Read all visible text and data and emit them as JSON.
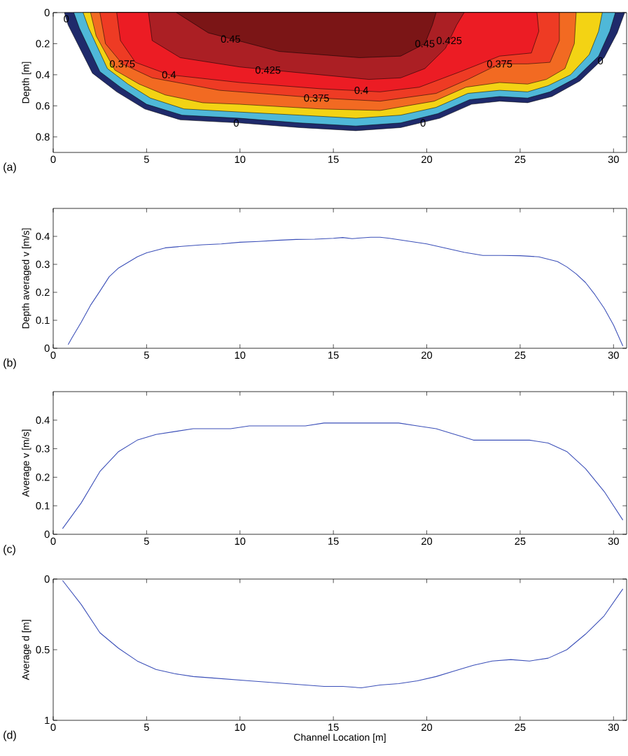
{
  "chart_data": [
    {
      "type": "area",
      "ylabel": "Depth [m]",
      "xlim": [
        0,
        30.7
      ],
      "ylim": [
        0.9,
        0
      ],
      "xticks": [
        0,
        5,
        10,
        15,
        20,
        25,
        30
      ],
      "yticks": [
        0,
        0.2,
        0.4,
        0.6,
        0.8
      ],
      "series": [
        {
          "color": "#1f2a6b",
          "x": [
            0.6,
            0.8,
            2.1,
            3.4,
            4.9,
            6.8,
            10,
            13.2,
            16.2,
            18.6,
            20.7,
            22.4,
            23.9,
            25.4,
            26.7,
            28.2,
            29.5,
            30.2,
            30.6
          ],
          "values": [
            0,
            0.08,
            0.39,
            0.51,
            0.62,
            0.69,
            0.71,
            0.74,
            0.76,
            0.74,
            0.68,
            0.59,
            0.57,
            0.58,
            0.54,
            0.44,
            0.29,
            0.13,
            0
          ]
        },
        {
          "color": "#4fb8d8",
          "x": [
            1.1,
            1.4,
            2.5,
            3.6,
            5,
            6.9,
            10,
            13.2,
            16.2,
            18.6,
            20.6,
            22.3,
            23.9,
            25.4,
            26.6,
            28,
            29.2,
            29.8,
            30.1
          ],
          "values": [
            0,
            0.1,
            0.38,
            0.48,
            0.59,
            0.66,
            0.68,
            0.71,
            0.73,
            0.71,
            0.65,
            0.56,
            0.54,
            0.55,
            0.51,
            0.42,
            0.28,
            0.12,
            0
          ]
        },
        {
          "color": "#f3d314",
          "x": [
            1.6,
            1.9,
            2.9,
            4,
            5.2,
            7,
            10,
            13.2,
            16.2,
            18.6,
            20.5,
            22.2,
            23.9,
            25.4,
            26.5,
            27.7,
            28.7,
            29.2,
            29.4
          ],
          "values": [
            0,
            0.1,
            0.36,
            0.46,
            0.55,
            0.62,
            0.64,
            0.66,
            0.68,
            0.66,
            0.61,
            0.52,
            0.5,
            0.51,
            0.47,
            0.4,
            0.27,
            0.12,
            0
          ]
        },
        {
          "color": "#f26a22",
          "x": [
            2,
            2.3,
            3.3,
            4.6,
            6,
            8,
            10,
            14.3,
            17.5,
            20.4,
            22.1,
            23.9,
            25.4,
            26.4,
            27.4,
            27.9,
            28
          ],
          "values": [
            0,
            0.15,
            0.37,
            0.46,
            0.53,
            0.58,
            0.59,
            0.62,
            0.63,
            0.57,
            0.48,
            0.45,
            0.46,
            0.43,
            0.36,
            0.2,
            0
          ]
        },
        {
          "color": "#ee3b24",
          "x": [
            2.5,
            2.8,
            3.7,
            5.3,
            8.9,
            14.3,
            17.5,
            20.5,
            22.2,
            23.9,
            25.4,
            26.6,
            27.1,
            27.1
          ],
          "values": [
            0,
            0.2,
            0.33,
            0.42,
            0.5,
            0.55,
            0.57,
            0.52,
            0.43,
            0.33,
            0.33,
            0.32,
            0.18,
            0
          ]
        },
        {
          "color": "#ec1c24",
          "x": [
            3.4,
            3.6,
            4.4,
            6.2,
            10,
            14.3,
            17.5,
            19.6,
            21.8,
            23.9,
            25.6,
            26,
            25.9
          ],
          "values": [
            0,
            0.18,
            0.32,
            0.4,
            0.45,
            0.49,
            0.51,
            0.48,
            0.38,
            0.28,
            0.26,
            0.12,
            0
          ]
        },
        {
          "color": "#ab1f24",
          "x": [
            5.1,
            5.3,
            6.8,
            10,
            14.3,
            16.9,
            18.6,
            19.9,
            21,
            21.6,
            22
          ],
          "values": [
            0,
            0.18,
            0.29,
            0.35,
            0.4,
            0.43,
            0.42,
            0.36,
            0.23,
            0.08,
            0
          ]
        },
        {
          "color": "#7b1516",
          "x": [
            6.6,
            8.3,
            12.1,
            16.4,
            18.6,
            19.9,
            20.3,
            20.5
          ],
          "values": [
            0,
            0.13,
            0.25,
            0.29,
            0.28,
            0.2,
            0.08,
            0
          ]
        }
      ],
      "annotations": [
        "(a)",
        {
          "text": "0",
          "x": 0.7,
          "y": 0.04
        },
        {
          "text": "0",
          "x": 9.8,
          "y": 0.71
        },
        {
          "text": "0",
          "x": 19.8,
          "y": 0.71
        },
        {
          "text": "0",
          "x": 29.3,
          "y": 0.31
        },
        {
          "text": "0.375",
          "x": 3.7,
          "y": 0.33
        },
        {
          "text": "0.375",
          "x": 14.1,
          "y": 0.55
        },
        {
          "text": "0.375",
          "x": 23.9,
          "y": 0.33
        },
        {
          "text": "0.4",
          "x": 6.2,
          "y": 0.4
        },
        {
          "text": "0.4",
          "x": 16.5,
          "y": 0.5
        },
        {
          "text": "0.425",
          "x": 11.5,
          "y": 0.37
        },
        {
          "text": "0.425",
          "x": 21.2,
          "y": 0.18
        },
        {
          "text": "0.45",
          "x": 9.5,
          "y": 0.17
        },
        {
          "text": "0.45",
          "x": 19.9,
          "y": 0.2
        }
      ]
    },
    {
      "type": "line",
      "ylabel": "Depth averaged v [m/s]",
      "xlim": [
        0,
        30.7
      ],
      "ylim": [
        0,
        0.5
      ],
      "xticks": [
        0,
        5,
        10,
        15,
        20,
        25,
        30
      ],
      "yticks": [
        0,
        0.1,
        0.2,
        0.3,
        0.4
      ],
      "color": "#3b4fb8",
      "x": [
        0.8,
        1,
        1.5,
        2,
        2.5,
        3,
        3.5,
        4,
        4.5,
        5,
        6,
        7,
        8,
        9,
        10,
        11,
        12,
        13,
        14,
        15,
        15.5,
        16,
        17,
        17.5,
        18,
        19,
        20,
        21,
        22,
        23,
        24,
        25,
        26,
        27,
        27.5,
        28,
        28.5,
        29,
        29.5,
        30,
        30.5
      ],
      "values": [
        0.013,
        0.037,
        0.093,
        0.154,
        0.204,
        0.256,
        0.287,
        0.307,
        0.327,
        0.341,
        0.359,
        0.365,
        0.37,
        0.373,
        0.379,
        0.382,
        0.386,
        0.389,
        0.39,
        0.393,
        0.396,
        0.392,
        0.397,
        0.397,
        0.393,
        0.383,
        0.373,
        0.358,
        0.343,
        0.332,
        0.332,
        0.331,
        0.327,
        0.31,
        0.291,
        0.266,
        0.235,
        0.192,
        0.143,
        0.083,
        0.008
      ],
      "annotations": [
        "(b)"
      ]
    },
    {
      "type": "line",
      "ylabel": "Average v [m/s]",
      "xlim": [
        0,
        30.7
      ],
      "ylim": [
        0,
        0.5
      ],
      "xticks": [
        0,
        5,
        10,
        15,
        20,
        25,
        30
      ],
      "yticks": [
        0,
        0.1,
        0.2,
        0.3,
        0.4
      ],
      "color": "#3b4fb8",
      "x": [
        0.5,
        1.5,
        2.5,
        3.5,
        4.5,
        5.5,
        6.5,
        7.5,
        8.5,
        9.5,
        10.5,
        11.5,
        12.5,
        13.5,
        14.5,
        15.5,
        16.5,
        17.5,
        18.5,
        19.5,
        20.5,
        21.5,
        22.5,
        23.5,
        24.5,
        25.5,
        26.5,
        27.5,
        28.5,
        29.5,
        30.5
      ],
      "values": [
        0.02,
        0.11,
        0.22,
        0.29,
        0.33,
        0.35,
        0.36,
        0.37,
        0.37,
        0.37,
        0.38,
        0.38,
        0.38,
        0.38,
        0.39,
        0.39,
        0.39,
        0.39,
        0.39,
        0.38,
        0.37,
        0.35,
        0.33,
        0.33,
        0.33,
        0.33,
        0.32,
        0.29,
        0.23,
        0.15,
        0.05
      ],
      "annotations": [
        "(c)"
      ]
    },
    {
      "type": "line",
      "xlabel": "Channel Location [m]",
      "ylabel": "Average d [m]",
      "xlim": [
        0,
        30.7
      ],
      "ylim": [
        1,
        0
      ],
      "xticks": [
        0,
        5,
        10,
        15,
        20,
        25,
        30
      ],
      "yticks": [
        0,
        0.5,
        1
      ],
      "color": "#3b4fb8",
      "x": [
        0.5,
        1.5,
        2.5,
        3.5,
        4.5,
        5.5,
        6.5,
        7.5,
        8.5,
        9.5,
        10.5,
        11.5,
        12.5,
        13.5,
        14.5,
        15.5,
        16.5,
        17.5,
        18.5,
        19.5,
        20.5,
        21.5,
        22.5,
        23.5,
        24.5,
        25.5,
        26.5,
        27.5,
        28.5,
        29.5,
        30.5
      ],
      "values": [
        0.01,
        0.18,
        0.38,
        0.49,
        0.58,
        0.64,
        0.67,
        0.69,
        0.7,
        0.71,
        0.72,
        0.73,
        0.74,
        0.75,
        0.76,
        0.76,
        0.77,
        0.75,
        0.74,
        0.72,
        0.69,
        0.65,
        0.61,
        0.58,
        0.57,
        0.58,
        0.56,
        0.5,
        0.39,
        0.26,
        0.07
      ],
      "annotations": [
        "(d)"
      ]
    }
  ]
}
